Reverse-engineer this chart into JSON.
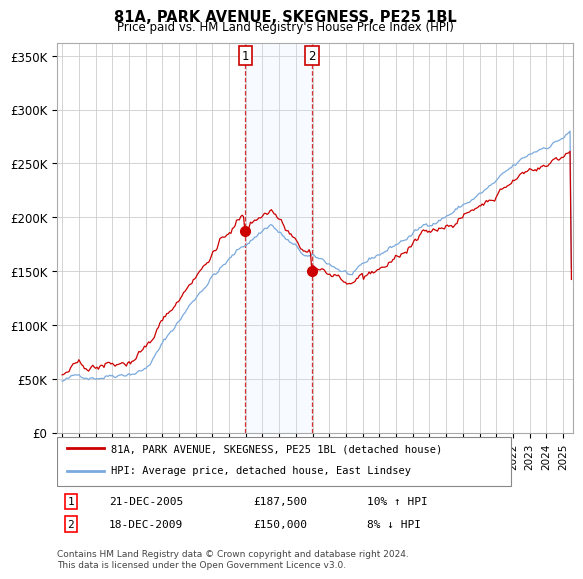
{
  "title": "81A, PARK AVENUE, SKEGNESS, PE25 1BL",
  "subtitle": "Price paid vs. HM Land Registry's House Price Index (HPI)",
  "ylabel_ticks": [
    "£0",
    "£50K",
    "£100K",
    "£150K",
    "£200K",
    "£250K",
    "£300K",
    "£350K"
  ],
  "ytick_values": [
    0,
    50000,
    100000,
    150000,
    200000,
    250000,
    300000,
    350000
  ],
  "ylim": [
    0,
    362000
  ],
  "xlim_start": 1994.7,
  "xlim_end": 2025.6,
  "legend_line1": "81A, PARK AVENUE, SKEGNESS, PE25 1BL (detached house)",
  "legend_line2": "HPI: Average price, detached house, East Lindsey",
  "event1_label": "1",
  "event1_date": "21-DEC-2005",
  "event1_price": "£187,500",
  "event1_hpi": "10% ↑ HPI",
  "event2_label": "2",
  "event2_date": "18-DEC-2009",
  "event2_price": "£150,000",
  "event2_hpi": "8% ↓ HPI",
  "event1_x": 2005.97,
  "event2_x": 2009.97,
  "shade_start": 2005.97,
  "shade_end": 2009.97,
  "footnote": "Contains HM Land Registry data © Crown copyright and database right 2024.\nThis data is licensed under the Open Government Licence v3.0.",
  "line1_color": "#cc0000",
  "line2_color": "#7aaadd",
  "shade_color": "#ddeeff",
  "event_vline_color": "#cc0000",
  "background_color": "#ffffff",
  "grid_color": "#cccccc"
}
